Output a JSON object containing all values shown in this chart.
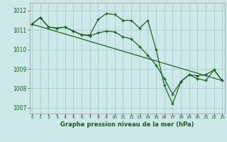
{
  "background_color": "#cce8e8",
  "grid_color": "#aacccc",
  "line_color": "#1a5c1a",
  "ylim_min": 1006.7,
  "ylim_max": 1012.4,
  "xlim_min": -0.3,
  "xlim_max": 23.3,
  "yticks": [
    1007,
    1008,
    1009,
    1010,
    1011,
    1012
  ],
  "xticks": [
    0,
    1,
    2,
    3,
    4,
    5,
    6,
    7,
    8,
    9,
    10,
    11,
    12,
    13,
    14,
    15,
    16,
    17,
    18,
    19,
    20,
    21,
    22,
    23
  ],
  "xlabel": "Graphe pression niveau de la mer (hPa)",
  "series1_x": [
    0,
    1,
    2,
    3,
    4,
    5,
    6,
    7,
    8,
    9,
    10,
    11,
    12,
    13,
    14,
    15,
    16,
    17,
    18,
    19,
    20,
    21,
    22,
    23
  ],
  "series1_y": [
    1011.3,
    1011.65,
    1011.15,
    1011.1,
    1011.15,
    1010.95,
    1010.75,
    1010.75,
    1011.55,
    1011.85,
    1011.8,
    1011.5,
    1011.5,
    1011.1,
    1011.5,
    1010.0,
    1008.15,
    1007.2,
    1008.35,
    1008.7,
    1008.65,
    1008.7,
    1008.95,
    1008.4
  ],
  "series2_x": [
    0,
    1,
    2,
    3,
    4,
    5,
    6,
    7,
    8,
    9,
    10,
    11,
    12,
    13,
    14,
    15,
    16,
    17,
    18,
    19,
    20,
    21,
    22,
    23
  ],
  "series2_y": [
    1011.3,
    1011.65,
    1011.15,
    1011.1,
    1011.15,
    1010.95,
    1010.75,
    1010.7,
    1010.85,
    1010.95,
    1010.9,
    1010.65,
    1010.55,
    1010.15,
    1009.7,
    1009.2,
    1008.5,
    1007.7,
    1008.35,
    1008.7,
    1008.5,
    1008.4,
    1008.95,
    1008.4
  ],
  "trend_x": [
    0,
    23
  ],
  "trend_y": [
    1011.3,
    1008.4
  ]
}
